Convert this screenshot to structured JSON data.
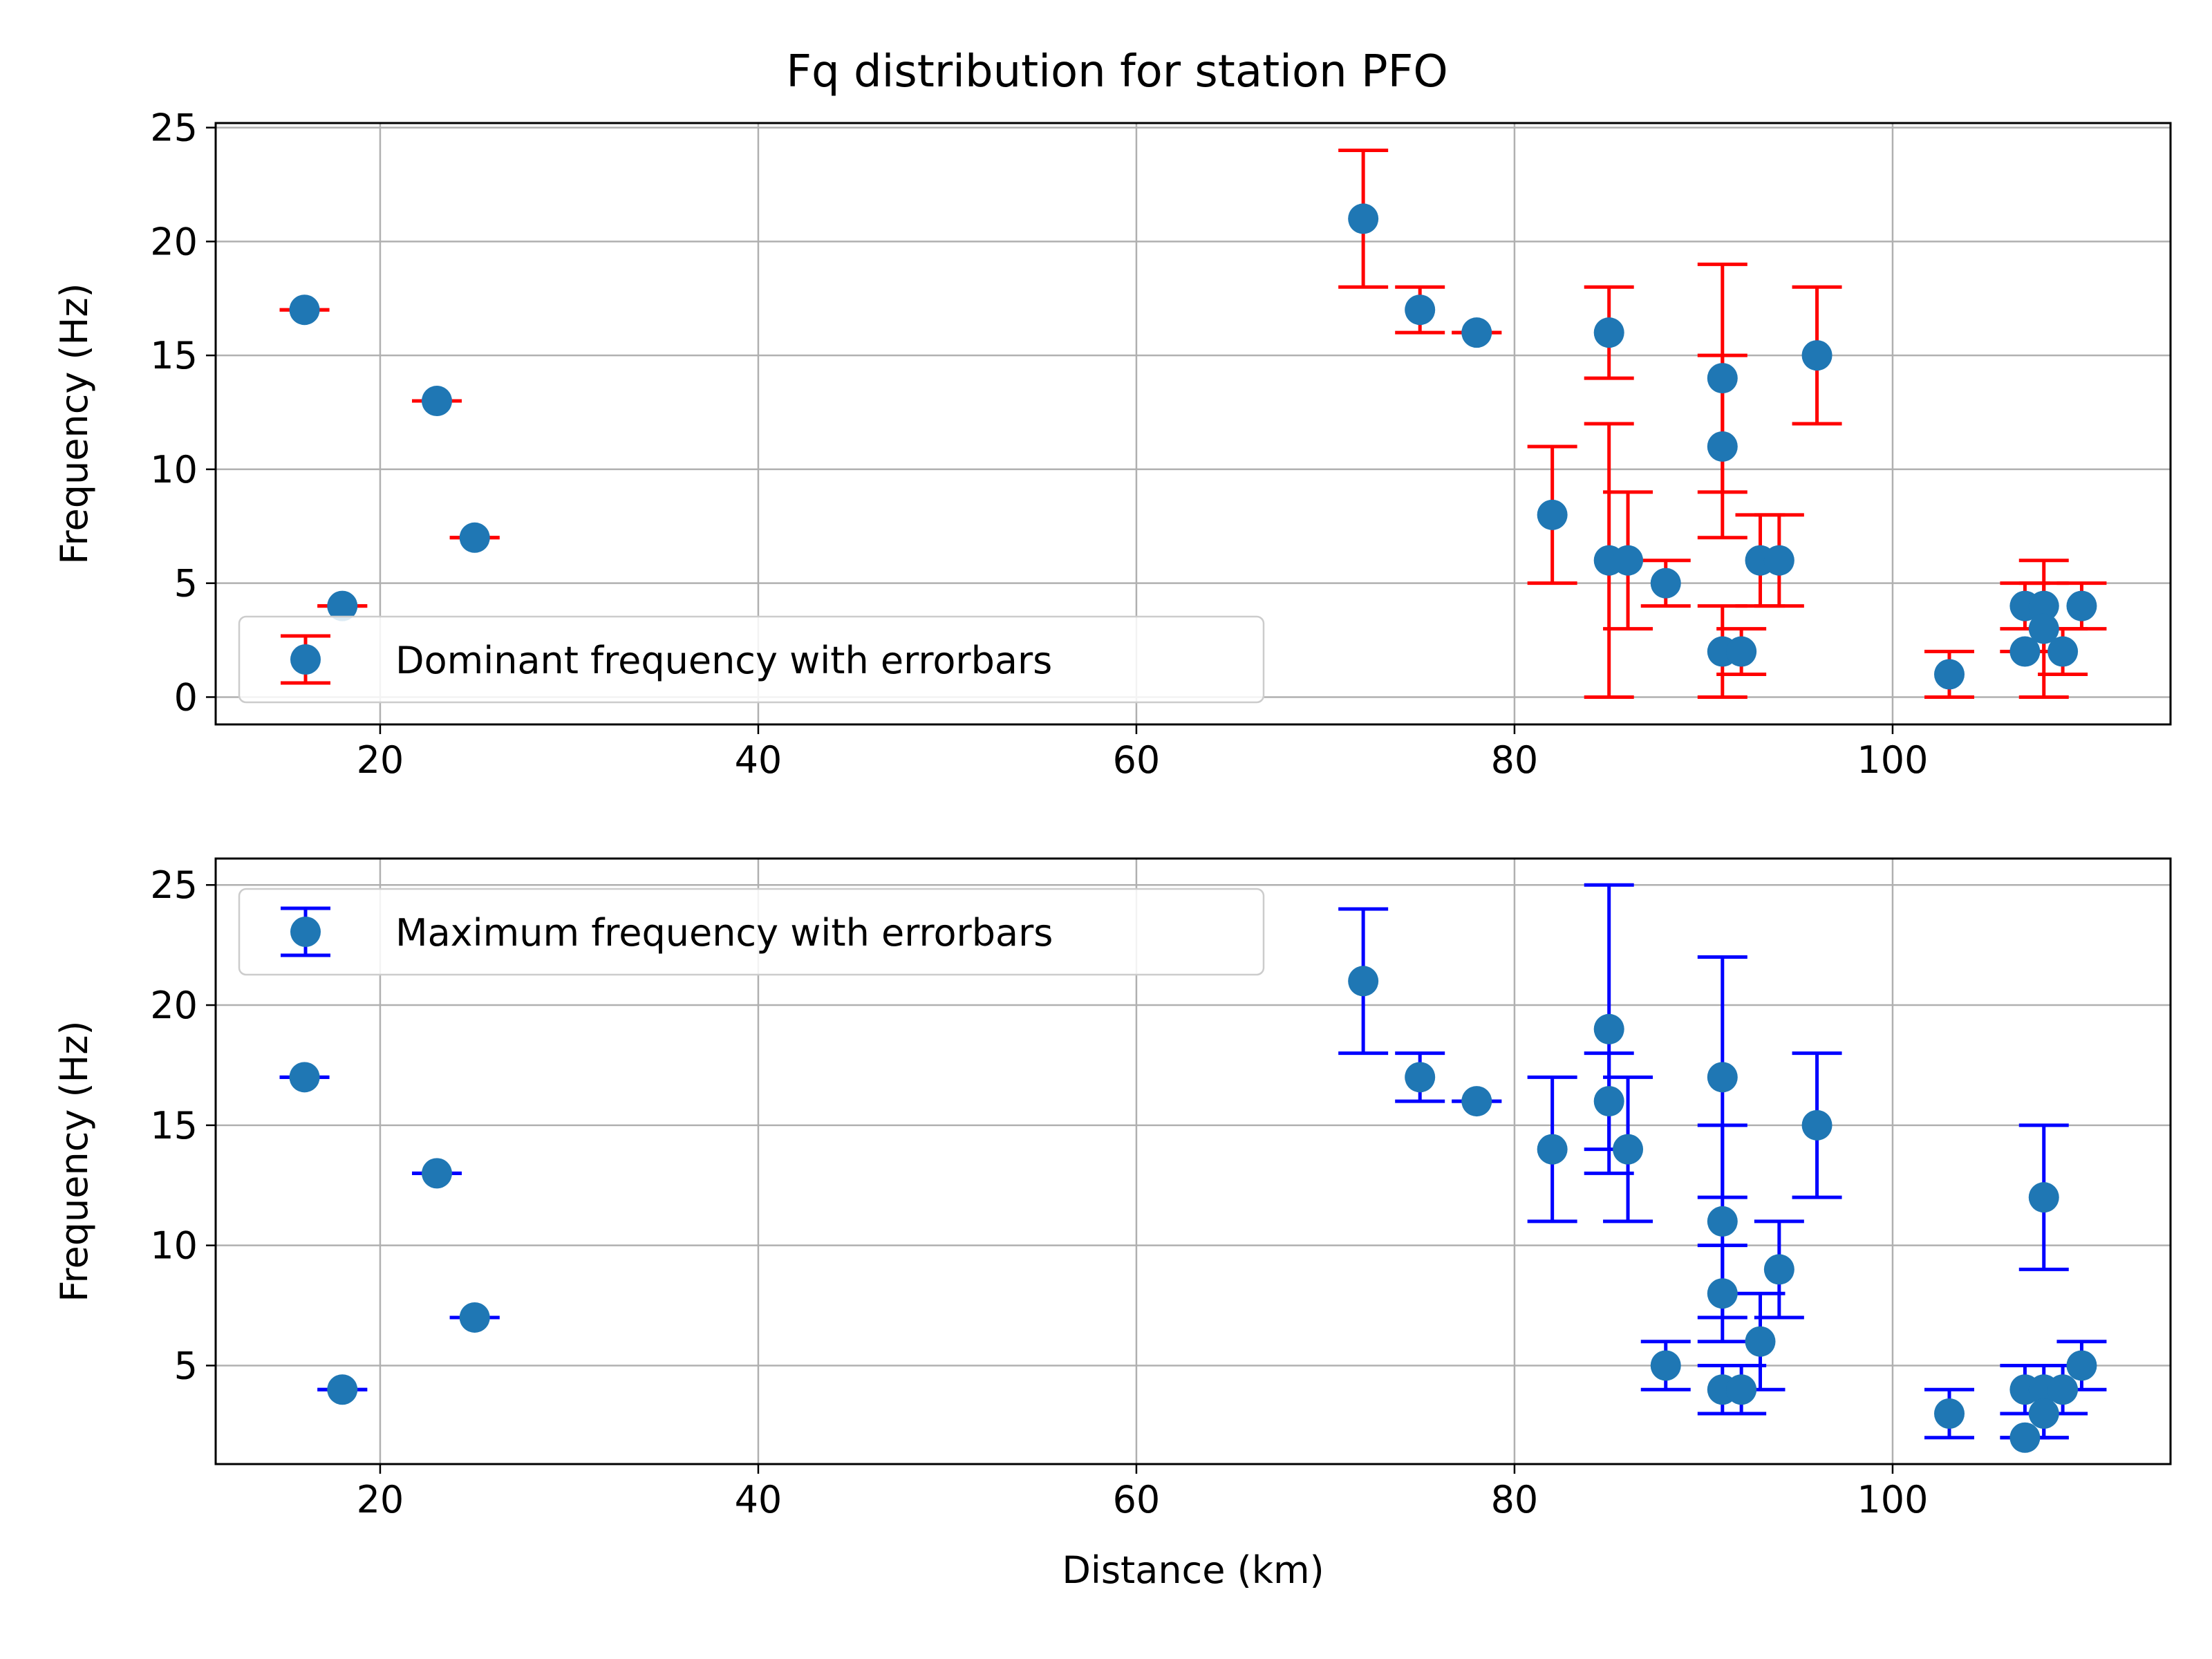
{
  "title": "Fq distribution for station PFO",
  "colors": {
    "marker": "#1f77b4",
    "grid": "#b0b0b0",
    "axis": "#000000"
  },
  "chart_data": [
    {
      "type": "scatter",
      "xlabel": "",
      "ylabel": "Frequency (Hz)",
      "xlim": [
        11.3,
        114.7
      ],
      "ylim": [
        -1.2,
        25.2
      ],
      "xticks": [
        20,
        40,
        60,
        80,
        100
      ],
      "xtick_labels": [
        "20",
        "40",
        "60",
        "80",
        "100"
      ],
      "yticks": [
        0,
        5,
        10,
        15,
        20,
        25
      ],
      "ytick_labels": [
        "0",
        "5",
        "10",
        "15",
        "20",
        "25"
      ],
      "grid": true,
      "legend": {
        "position": "lower-left",
        "label": "Dominant frequency with errorbars",
        "errorbar_color": "#ff0000"
      },
      "series": [
        {
          "name": "Dominant frequency with errorbars",
          "errorbar_color": "#ff0000",
          "points": [
            {
              "x": 16,
              "y": 17,
              "lo": 17,
              "hi": 17
            },
            {
              "x": 18,
              "y": 4,
              "lo": 4,
              "hi": 4
            },
            {
              "x": 23,
              "y": 13,
              "lo": 13,
              "hi": 13
            },
            {
              "x": 25,
              "y": 7,
              "lo": 7,
              "hi": 7
            },
            {
              "x": 72,
              "y": 21,
              "lo": 18,
              "hi": 24
            },
            {
              "x": 75,
              "y": 17,
              "lo": 16,
              "hi": 18
            },
            {
              "x": 78,
              "y": 16,
              "lo": 16,
              "hi": 16
            },
            {
              "x": 82,
              "y": 8,
              "lo": 5,
              "hi": 11
            },
            {
              "x": 85,
              "y": 16,
              "lo": 14,
              "hi": 18
            },
            {
              "x": 85,
              "y": 6,
              "lo": 0,
              "hi": 12
            },
            {
              "x": 86,
              "y": 6,
              "lo": 3,
              "hi": 9
            },
            {
              "x": 88,
              "y": 5,
              "lo": 4,
              "hi": 6
            },
            {
              "x": 91,
              "y": 14,
              "lo": 9,
              "hi": 19
            },
            {
              "x": 91,
              "y": 11,
              "lo": 7,
              "hi": 15
            },
            {
              "x": 91,
              "y": 2,
              "lo": 0,
              "hi": 4
            },
            {
              "x": 92,
              "y": 2,
              "lo": 1,
              "hi": 3
            },
            {
              "x": 93,
              "y": 6,
              "lo": 4,
              "hi": 8
            },
            {
              "x": 94,
              "y": 6,
              "lo": 4,
              "hi": 8
            },
            {
              "x": 96,
              "y": 15,
              "lo": 12,
              "hi": 18
            },
            {
              "x": 103,
              "y": 1,
              "lo": 0,
              "hi": 2
            },
            {
              "x": 107,
              "y": 4,
              "lo": 3,
              "hi": 5
            },
            {
              "x": 107,
              "y": 2,
              "lo": 2,
              "hi": 2
            },
            {
              "x": 108,
              "y": 4,
              "lo": 2,
              "hi": 6
            },
            {
              "x": 108,
              "y": 3,
              "lo": 0,
              "hi": 5
            },
            {
              "x": 109,
              "y": 2,
              "lo": 1,
              "hi": 3
            },
            {
              "x": 110,
              "y": 4,
              "lo": 3,
              "hi": 5
            }
          ]
        }
      ]
    },
    {
      "type": "scatter",
      "xlabel": "Distance (km)",
      "ylabel": "Frequency (Hz)",
      "xlim": [
        11.3,
        114.7
      ],
      "ylim": [
        0.9,
        26.1
      ],
      "xticks": [
        20,
        40,
        60,
        80,
        100
      ],
      "xtick_labels": [
        "20",
        "40",
        "60",
        "80",
        "100"
      ],
      "yticks": [
        5,
        10,
        15,
        20,
        25
      ],
      "ytick_labels": [
        "5",
        "10",
        "15",
        "20",
        "25"
      ],
      "grid": true,
      "legend": {
        "position": "upper-left",
        "label": "Maximum frequency with errorbars",
        "errorbar_color": "#0000ff"
      },
      "series": [
        {
          "name": "Maximum frequency with errorbars",
          "errorbar_color": "#0000ff",
          "points": [
            {
              "x": 16,
              "y": 17,
              "lo": 17,
              "hi": 17
            },
            {
              "x": 18,
              "y": 4,
              "lo": 4,
              "hi": 4
            },
            {
              "x": 23,
              "y": 13,
              "lo": 13,
              "hi": 13
            },
            {
              "x": 25,
              "y": 7,
              "lo": 7,
              "hi": 7
            },
            {
              "x": 72,
              "y": 21,
              "lo": 18,
              "hi": 24
            },
            {
              "x": 75,
              "y": 17,
              "lo": 16,
              "hi": 18
            },
            {
              "x": 78,
              "y": 16,
              "lo": 16,
              "hi": 16
            },
            {
              "x": 82,
              "y": 14,
              "lo": 11,
              "hi": 17
            },
            {
              "x": 85,
              "y": 19,
              "lo": 13,
              "hi": 25
            },
            {
              "x": 85,
              "y": 16,
              "lo": 14,
              "hi": 18
            },
            {
              "x": 86,
              "y": 14,
              "lo": 11,
              "hi": 17
            },
            {
              "x": 88,
              "y": 5,
              "lo": 4,
              "hi": 6
            },
            {
              "x": 91,
              "y": 17,
              "lo": 12,
              "hi": 22
            },
            {
              "x": 91,
              "y": 11,
              "lo": 7,
              "hi": 15
            },
            {
              "x": 91,
              "y": 8,
              "lo": 6,
              "hi": 10
            },
            {
              "x": 91,
              "y": 4,
              "lo": 3,
              "hi": 5
            },
            {
              "x": 92,
              "y": 4,
              "lo": 3,
              "hi": 5
            },
            {
              "x": 93,
              "y": 6,
              "lo": 4,
              "hi": 8
            },
            {
              "x": 94,
              "y": 9,
              "lo": 7,
              "hi": 11
            },
            {
              "x": 96,
              "y": 15,
              "lo": 12,
              "hi": 18
            },
            {
              "x": 103,
              "y": 3,
              "lo": 2,
              "hi": 4
            },
            {
              "x": 107,
              "y": 4,
              "lo": 3,
              "hi": 5
            },
            {
              "x": 107,
              "y": 2,
              "lo": 2,
              "hi": 2
            },
            {
              "x": 108,
              "y": 12,
              "lo": 9,
              "hi": 15
            },
            {
              "x": 108,
              "y": 4,
              "lo": 2,
              "hi": 5
            },
            {
              "x": 108,
              "y": 3,
              "lo": 2,
              "hi": 4
            },
            {
              "x": 109,
              "y": 4,
              "lo": 3,
              "hi": 5
            },
            {
              "x": 110,
              "y": 5,
              "lo": 4,
              "hi": 6
            }
          ]
        }
      ]
    }
  ]
}
